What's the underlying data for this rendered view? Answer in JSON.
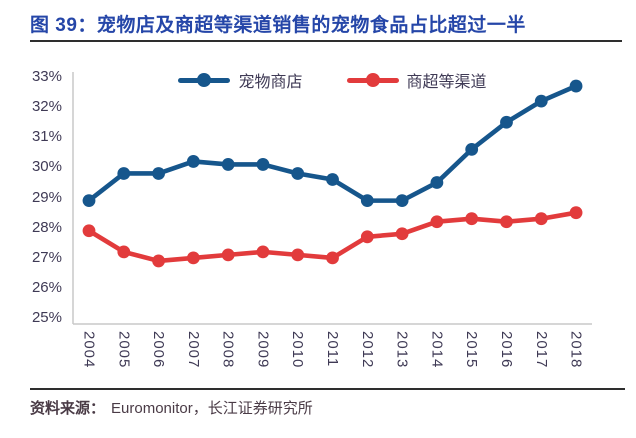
{
  "header": {
    "title": "图 39：宠物店及商超等渠道销售的宠物食品占比超过一半"
  },
  "footer": {
    "source_label": "资料来源：",
    "source_text": "Euromonitor，长江证券研究所"
  },
  "colors": {
    "title_blue": "#2546A8",
    "axis_text": "#3F3A55",
    "axis_line": "#C9C9C9",
    "divider_dark": "#2E2E2E",
    "footer_text": "#4A3B46",
    "series_blue": "#16568C",
    "series_red": "#E23B3C"
  },
  "chart_data": {
    "type": "line",
    "title": "宠物店及商超等渠道销售的宠物食品占比超过一半",
    "xlabel": "",
    "ylabel": "",
    "categories": [
      "2004",
      "2005",
      "2006",
      "2007",
      "2008",
      "2009",
      "2010",
      "2011",
      "2012",
      "2013",
      "2014",
      "2015",
      "2016",
      "2017",
      "2018"
    ],
    "series": [
      {
        "name": "宠物商店",
        "color": "#16568C",
        "values": [
          28.9,
          29.8,
          29.8,
          30.2,
          30.1,
          30.1,
          29.8,
          29.6,
          28.9,
          28.9,
          29.5,
          30.6,
          31.5,
          32.2,
          32.7
        ]
      },
      {
        "name": "商超等渠道",
        "color": "#E23B3C",
        "values": [
          27.9,
          27.2,
          26.9,
          27.0,
          27.1,
          27.2,
          27.1,
          27.0,
          27.7,
          27.8,
          28.2,
          28.3,
          28.2,
          28.3,
          28.5
        ]
      }
    ],
    "ylim": [
      25,
      33
    ],
    "ytick_values": [
      33,
      32,
      31,
      30,
      29,
      28,
      27,
      26,
      25
    ],
    "ytick_labels": [
      "33%",
      "32%",
      "31%",
      "30%",
      "29%",
      "28%",
      "27%",
      "26%",
      "25%"
    ],
    "grid": false,
    "legend_position": "top-center"
  }
}
